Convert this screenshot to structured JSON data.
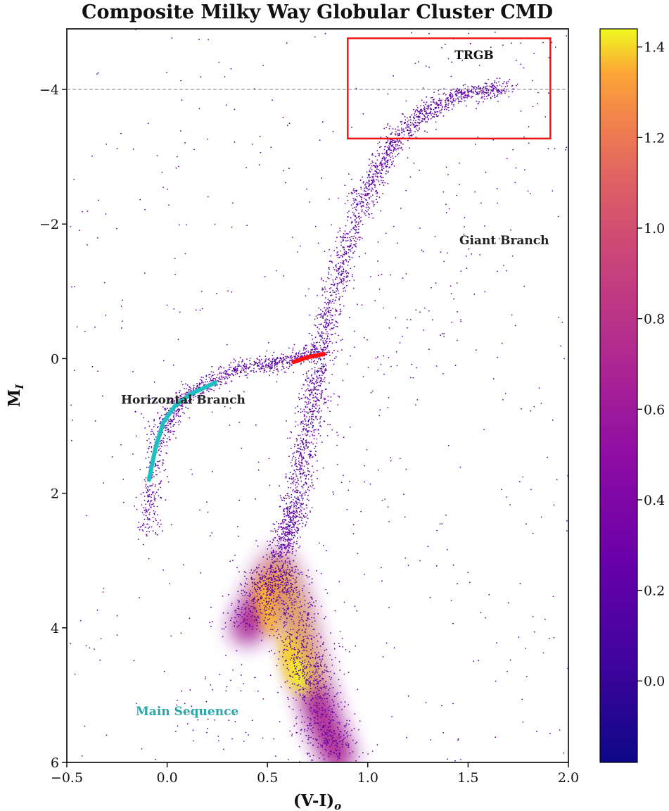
{
  "chart_data": {
    "type": "scatter",
    "title": "Composite Milky Way Globular Cluster CMD",
    "xlabel": "(V-I)",
    "xlabel_sub": "o",
    "ylabel": "M",
    "ylabel_sub": "I",
    "xlim": [
      -0.5,
      2.0
    ],
    "ylim": [
      6,
      -4.9
    ],
    "y_inverted": true,
    "x_ticks": [
      -0.5,
      0.0,
      0.5,
      1.0,
      1.5,
      2.0
    ],
    "x_tick_labels": [
      "−0.5",
      "0.0",
      "0.5",
      "1.0",
      "1.5",
      "2.0"
    ],
    "y_ticks": [
      -4,
      -2,
      0,
      2,
      4,
      6
    ],
    "y_tick_labels": [
      "−4",
      "−2",
      "0",
      "2",
      "4",
      "6"
    ],
    "grid": false,
    "colormap": "plasma",
    "colorbar": {
      "range": [
        -0.18,
        1.44
      ],
      "ticks": [
        0.0,
        0.2,
        0.4,
        0.6,
        0.8,
        1.0,
        1.2,
        1.4
      ],
      "tick_labels": [
        "0.0",
        "0.2",
        "0.4",
        "0.6",
        "0.8",
        "1.0",
        "1.2",
        "1.4"
      ]
    },
    "density_ridges": [
      {
        "name": "main_sequence",
        "points": [
          [
            0.4,
            4.0
          ],
          [
            0.48,
            3.5
          ],
          [
            0.55,
            3.1
          ],
          [
            0.62,
            3.6
          ],
          [
            0.68,
            4.3
          ],
          [
            0.72,
            4.8
          ],
          [
            0.78,
            5.4
          ],
          [
            0.85,
            5.9
          ]
        ],
        "peak_density": 1.4
      },
      {
        "name": "subgiant_branch",
        "points": [
          [
            0.55,
            3.0
          ],
          [
            0.6,
            2.6
          ],
          [
            0.64,
            2.2
          ],
          [
            0.68,
            1.5
          ],
          [
            0.72,
            0.8
          ],
          [
            0.76,
            0.2
          ],
          [
            0.8,
            -0.5
          ],
          [
            0.86,
            -1.3
          ],
          [
            0.95,
            -2.2
          ],
          [
            1.05,
            -2.8
          ],
          [
            1.15,
            -3.3
          ],
          [
            1.3,
            -3.7
          ],
          [
            1.5,
            -3.95
          ],
          [
            1.7,
            -4.02
          ]
        ],
        "peak_density": 0.25
      },
      {
        "name": "horizontal_branch",
        "points": [
          [
            -0.1,
            2.6
          ],
          [
            -0.08,
            1.9
          ],
          [
            -0.04,
            1.2
          ],
          [
            0.02,
            0.8
          ],
          [
            0.1,
            0.55
          ],
          [
            0.22,
            0.35
          ],
          [
            0.35,
            0.15
          ],
          [
            0.5,
            0.1
          ],
          [
            0.62,
            0.0
          ],
          [
            0.75,
            -0.1
          ]
        ],
        "peak_density": 0.12
      }
    ],
    "fit_lines": [
      {
        "color": "#20c0c0",
        "points": [
          [
            -0.09,
            1.8
          ],
          [
            -0.06,
            1.35
          ],
          [
            -0.02,
            0.95
          ],
          [
            0.04,
            0.7
          ],
          [
            0.12,
            0.52
          ],
          [
            0.24,
            0.36
          ]
        ]
      },
      {
        "color": "#ff1010",
        "points": [
          [
            0.63,
            0.05
          ],
          [
            0.7,
            -0.02
          ],
          [
            0.78,
            -0.07
          ]
        ]
      }
    ],
    "reference_line": {
      "y": -4.0,
      "style": "dashed",
      "color": "#999999"
    },
    "box": {
      "x": [
        0.9,
        1.91
      ],
      "y": [
        -3.27,
        -4.76
      ],
      "color": "#ee1111",
      "label": "TRGB"
    },
    "annotations": [
      {
        "text": "TRGB",
        "x": 1.53,
        "y": -4.45,
        "color": "#111111"
      },
      {
        "text": "Giant Branch",
        "x": 1.68,
        "y": -1.7,
        "color": "#222222"
      },
      {
        "text": "Horizontal Branch",
        "x": 0.08,
        "y": 0.67,
        "color": "#222222"
      },
      {
        "text": "Main Sequence",
        "x": 0.1,
        "y": 5.3,
        "color": "#2aa8a8"
      }
    ]
  }
}
